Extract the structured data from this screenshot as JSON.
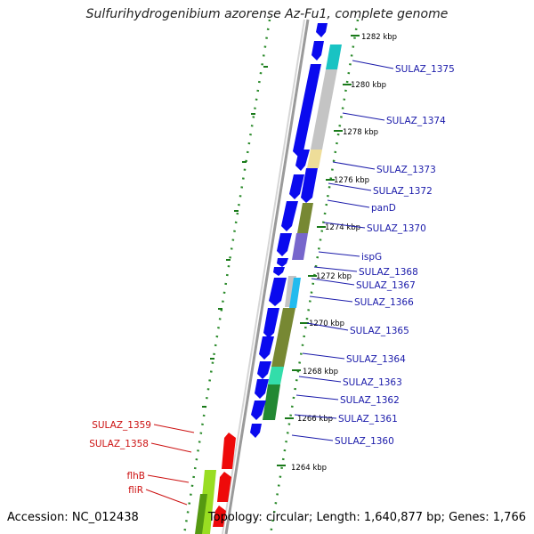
{
  "title": "Sulfurihydrogenibium azorense Az-Fu1, complete genome",
  "footer": {
    "accession": "Accession: NC_012438",
    "topology": "Topology: circular; Length: 1,640,877 bp; Genes: 1,766"
  },
  "ticks": [
    "1282 kbp",
    "1280 kbp",
    "1278 kbp",
    "1276 kbp",
    "1274 kbp",
    "1272 kbp",
    "1270 kbp",
    "1268 kbp",
    "1266 kbp",
    "1264 kbp"
  ],
  "genes_right": [
    "SULAZ_1375",
    "SULAZ_1374",
    "SULAZ_1373",
    "SULAZ_1372",
    "panD",
    "SULAZ_1370",
    "ispG",
    "SULAZ_1368",
    "SULAZ_1367",
    "SULAZ_1366",
    "SULAZ_1365",
    "SULAZ_1364",
    "SULAZ_1363",
    "SULAZ_1362",
    "SULAZ_1361",
    "SULAZ_1360"
  ],
  "genes_left": [
    "SULAZ_1359",
    "SULAZ_1358",
    "flhB",
    "fliR"
  ],
  "colors": {
    "forward_gene": "#0a0aee",
    "reverse_gene": "#ee0a0a",
    "label_forward": "#1a1aaa",
    "label_reverse": "#cc1111",
    "tick": "#1a7a1a",
    "backbone": "#999999"
  }
}
